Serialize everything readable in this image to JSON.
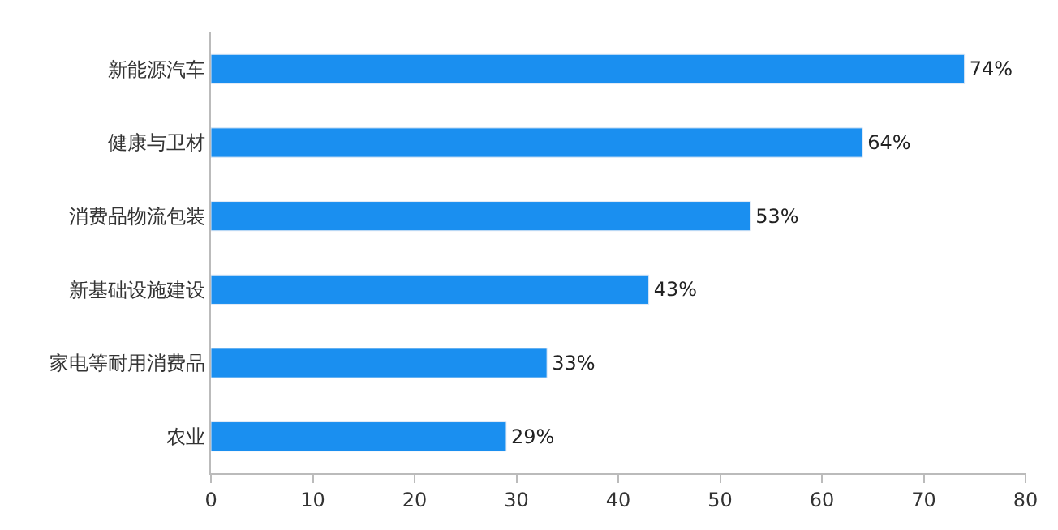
{
  "chart_data": {
    "type": "bar",
    "orientation": "horizontal",
    "categories": [
      "新能源汽车",
      "健康与卫材",
      "消费品物流包装",
      "新基础设施建设",
      "家电等耐用消费品",
      "农业"
    ],
    "values": [
      74,
      64,
      53,
      43,
      33,
      29
    ],
    "value_labels": [
      "74%",
      "64%",
      "53%",
      "43%",
      "33%",
      "29%"
    ],
    "color": "#1a8ff0",
    "xlim": [
      0,
      80
    ],
    "xticks": [
      0,
      10,
      20,
      30,
      40,
      50,
      60,
      70,
      80
    ],
    "grid": false,
    "legend": false
  }
}
